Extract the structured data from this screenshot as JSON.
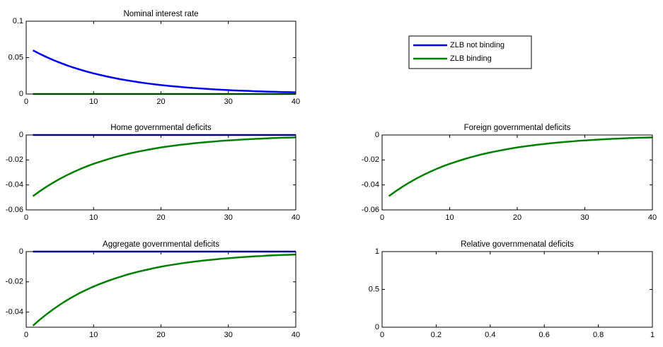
{
  "chart_data": [
    {
      "type": "line",
      "title": "Nominal interest rate",
      "legend": true,
      "x": [
        1,
        2,
        3,
        4,
        5,
        6,
        7,
        8,
        9,
        10,
        11,
        12,
        13,
        14,
        15,
        16,
        17,
        18,
        19,
        20,
        21,
        22,
        23,
        24,
        25,
        26,
        27,
        28,
        29,
        30,
        31,
        32,
        33,
        34,
        35,
        36,
        37,
        38,
        39,
        40
      ],
      "xlim": [
        0,
        40
      ],
      "xticks": [
        0,
        10,
        20,
        30,
        40
      ],
      "ylim": [
        0,
        0.1
      ],
      "yticks": [
        0,
        0.05,
        0.1
      ],
      "series": [
        {
          "name": "ZLB not binding",
          "color": "#0000ff",
          "values": [
            0.06,
            0.0552,
            0.0508,
            0.0467,
            0.043,
            0.0395,
            0.0364,
            0.0335,
            0.0308,
            0.0283,
            0.0261,
            0.024,
            0.0221,
            0.0203,
            0.0187,
            0.0172,
            0.0158,
            0.0145,
            0.0134,
            0.0123,
            0.0113,
            0.0104,
            0.0096,
            0.0088,
            0.0081,
            0.0075,
            0.0069,
            0.0063,
            0.0058,
            0.0053,
            0.0049,
            0.0045,
            0.0042,
            0.0038,
            0.0035,
            0.0032,
            0.003,
            0.0027,
            0.0025,
            0.0023
          ]
        },
        {
          "name": "ZLB binding",
          "color": "#008000",
          "values": [
            0,
            0,
            0,
            0,
            0,
            0,
            0,
            0,
            0,
            0,
            0,
            0,
            0,
            0,
            0,
            0,
            0,
            0,
            0,
            0,
            0,
            0,
            0,
            0,
            0,
            0,
            0,
            0,
            0,
            0,
            0,
            0,
            0,
            0,
            0,
            0,
            0,
            0,
            0,
            0
          ]
        }
      ]
    },
    {
      "type": "line",
      "title": "Home governmental deficits",
      "x": [
        1,
        2,
        3,
        4,
        5,
        6,
        7,
        8,
        9,
        10,
        11,
        12,
        13,
        14,
        15,
        16,
        17,
        18,
        19,
        20,
        21,
        22,
        23,
        24,
        25,
        26,
        27,
        28,
        29,
        30,
        31,
        32,
        33,
        34,
        35,
        36,
        37,
        38,
        39,
        40
      ],
      "xlim": [
        0,
        40
      ],
      "xticks": [
        0,
        10,
        20,
        30,
        40
      ],
      "ylim": [
        -0.06,
        0
      ],
      "yticks": [
        -0.06,
        -0.04,
        -0.02,
        0
      ],
      "series": [
        {
          "color": "#0000ff",
          "values": [
            0,
            0,
            0,
            0,
            0,
            0,
            0,
            0,
            0,
            0,
            0,
            0,
            0,
            0,
            0,
            0,
            0,
            0,
            0,
            0,
            0,
            0,
            0,
            0,
            0,
            0,
            0,
            0,
            0,
            0,
            0,
            0,
            0,
            0,
            0,
            0,
            0,
            0,
            0,
            0
          ]
        },
        {
          "color": "#008000",
          "values": [
            -0.049,
            -0.0451,
            -0.0415,
            -0.0382,
            -0.0351,
            -0.0323,
            -0.0297,
            -0.0273,
            -0.0251,
            -0.0231,
            -0.0213,
            -0.0196,
            -0.018,
            -0.0166,
            -0.0152,
            -0.014,
            -0.0129,
            -0.0119,
            -0.0109,
            -0.01,
            -0.0092,
            -0.0085,
            -0.0078,
            -0.0072,
            -0.0066,
            -0.0061,
            -0.0056,
            -0.0052,
            -0.0047,
            -0.0044,
            -0.004,
            -0.0037,
            -0.0034,
            -0.0031,
            -0.0029,
            -0.0026,
            -0.0024,
            -0.0022,
            -0.0021,
            -0.0019
          ]
        }
      ]
    },
    {
      "type": "line",
      "title": "Foreign governmental deficits",
      "x": [
        1,
        2,
        3,
        4,
        5,
        6,
        7,
        8,
        9,
        10,
        11,
        12,
        13,
        14,
        15,
        16,
        17,
        18,
        19,
        20,
        21,
        22,
        23,
        24,
        25,
        26,
        27,
        28,
        29,
        30,
        31,
        32,
        33,
        34,
        35,
        36,
        37,
        38,
        39,
        40
      ],
      "xlim": [
        0,
        40
      ],
      "xticks": [
        0,
        10,
        20,
        30,
        40
      ],
      "ylim": [
        -0.06,
        0
      ],
      "yticks": [
        -0.06,
        -0.04,
        -0.02,
        0
      ],
      "series": [
        {
          "color": "#008000",
          "values": [
            -0.049,
            -0.0451,
            -0.0415,
            -0.0382,
            -0.0351,
            -0.0323,
            -0.0297,
            -0.0273,
            -0.0251,
            -0.0231,
            -0.0213,
            -0.0196,
            -0.018,
            -0.0166,
            -0.0152,
            -0.014,
            -0.0129,
            -0.0119,
            -0.0109,
            -0.01,
            -0.0092,
            -0.0085,
            -0.0078,
            -0.0072,
            -0.0066,
            -0.0061,
            -0.0056,
            -0.0052,
            -0.0047,
            -0.0044,
            -0.004,
            -0.0037,
            -0.0034,
            -0.0031,
            -0.0029,
            -0.0026,
            -0.0024,
            -0.0022,
            -0.0021,
            -0.0019
          ]
        }
      ]
    },
    {
      "type": "line",
      "title": "Aggregate governmental deficits",
      "x": [
        1,
        2,
        3,
        4,
        5,
        6,
        7,
        8,
        9,
        10,
        11,
        12,
        13,
        14,
        15,
        16,
        17,
        18,
        19,
        20,
        21,
        22,
        23,
        24,
        25,
        26,
        27,
        28,
        29,
        30,
        31,
        32,
        33,
        34,
        35,
        36,
        37,
        38,
        39,
        40
      ],
      "xlim": [
        0,
        40
      ],
      "xticks": [
        0,
        10,
        20,
        30,
        40
      ],
      "ylim": [
        -0.05,
        0
      ],
      "yticks": [
        -0.04,
        -0.02,
        0
      ],
      "series": [
        {
          "color": "#0000ff",
          "values": [
            0,
            0,
            0,
            0,
            0,
            0,
            0,
            0,
            0,
            0,
            0,
            0,
            0,
            0,
            0,
            0,
            0,
            0,
            0,
            0,
            0,
            0,
            0,
            0,
            0,
            0,
            0,
            0,
            0,
            0,
            0,
            0,
            0,
            0,
            0,
            0,
            0,
            0,
            0,
            0
          ]
        },
        {
          "color": "#008000",
          "values": [
            -0.049,
            -0.0451,
            -0.0415,
            -0.0382,
            -0.0351,
            -0.0323,
            -0.0297,
            -0.0273,
            -0.0251,
            -0.0231,
            -0.0213,
            -0.0196,
            -0.018,
            -0.0166,
            -0.0152,
            -0.014,
            -0.0129,
            -0.0119,
            -0.0109,
            -0.01,
            -0.0092,
            -0.0085,
            -0.0078,
            -0.0072,
            -0.0066,
            -0.0061,
            -0.0056,
            -0.0052,
            -0.0047,
            -0.0044,
            -0.004,
            -0.0037,
            -0.0034,
            -0.0031,
            -0.0029,
            -0.0026,
            -0.0024,
            -0.0022,
            -0.0021,
            -0.0019
          ]
        }
      ]
    },
    {
      "type": "line",
      "title": "Relative governmenatal deficits",
      "xlim": [
        0,
        1
      ],
      "xticks": [
        0,
        0.2,
        0.4,
        0.6,
        0.8,
        1
      ],
      "ylim": [
        0,
        1
      ],
      "yticks": [
        0,
        0.5,
        1
      ],
      "series": []
    }
  ]
}
